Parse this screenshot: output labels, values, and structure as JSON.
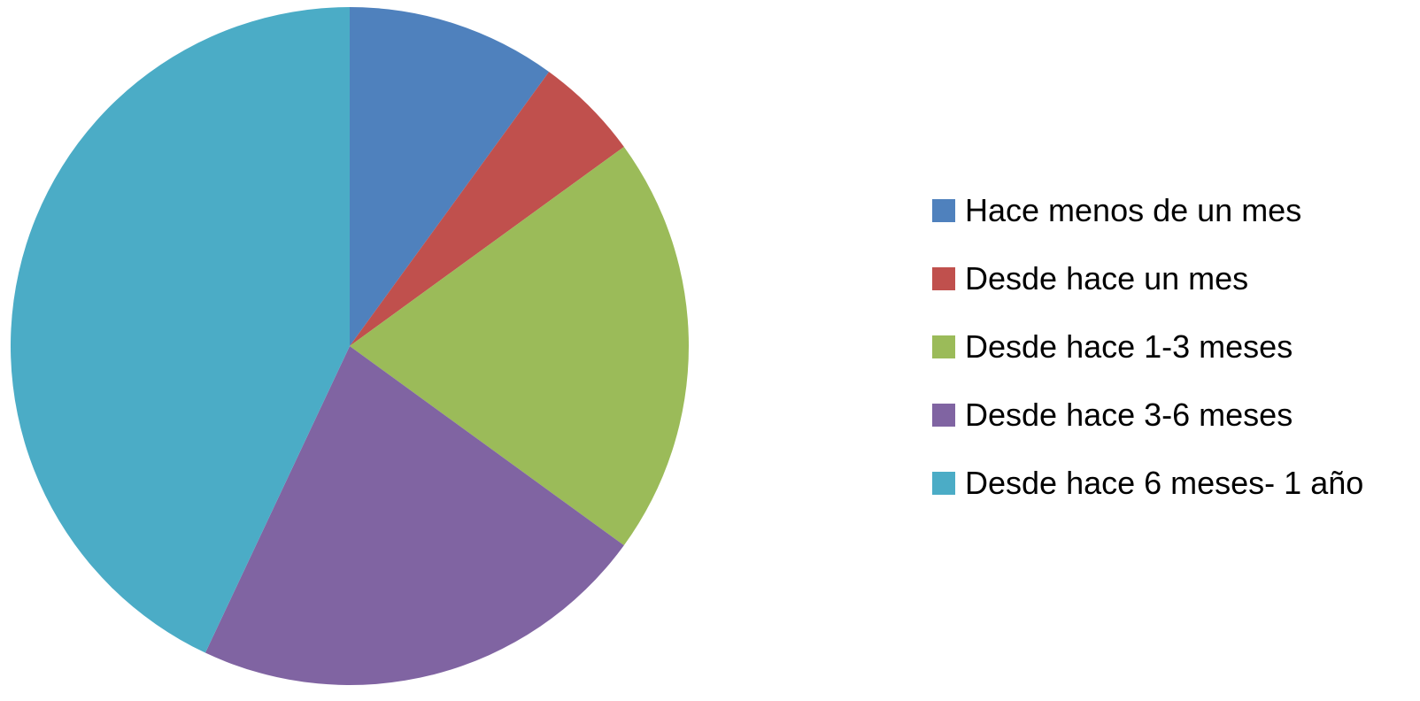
{
  "chart_data": {
    "type": "pie",
    "title": "",
    "start_angle_deg": 0,
    "direction": "clockwise",
    "legend_position": "right",
    "slices": [
      {
        "label": "Hace menos de un mes",
        "value": 10,
        "color": "#4F81BD"
      },
      {
        "label": "Desde hace un mes",
        "value": 5,
        "color": "#C0504D"
      },
      {
        "label": "Desde hace 1-3 meses",
        "value": 20,
        "color": "#9BBB59"
      },
      {
        "label": "Desde hace 3-6 meses",
        "value": 22,
        "color": "#8064A2"
      },
      {
        "label": "Desde hace 6 meses- 1 año",
        "value": 43,
        "color": "#4BACC6"
      }
    ]
  }
}
